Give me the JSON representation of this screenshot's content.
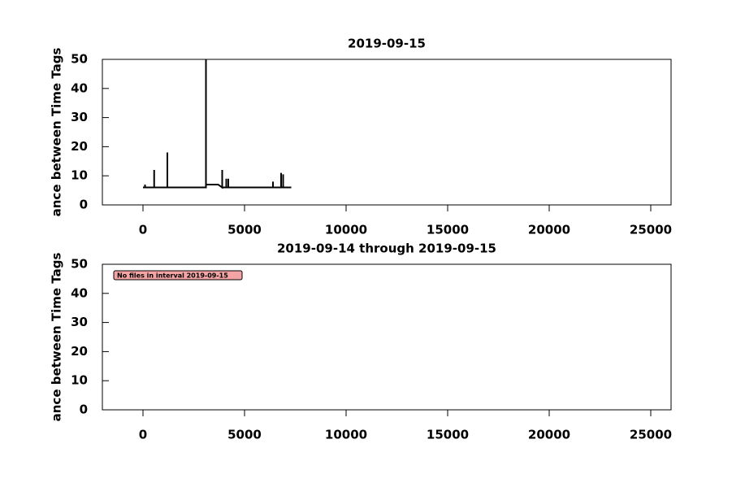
{
  "chart_data": [
    {
      "type": "line",
      "title": "2019-09-15",
      "ylabel": "ance between Time Tags",
      "xlim": [
        -2000,
        26000
      ],
      "xticks": [
        0,
        5000,
        10000,
        15000,
        20000,
        25000
      ],
      "ylim": [
        0,
        50
      ],
      "yticks": [
        0,
        10,
        20,
        30,
        40,
        50
      ],
      "series": [
        {
          "color": "#000000",
          "x": [
            0,
            100,
            100,
            100,
            550,
            550,
            550,
            1200,
            1200,
            1200,
            3100,
            3100,
            3100,
            3700,
            3900,
            3900,
            3900,
            4100,
            4100,
            4100,
            4200,
            4200,
            4200,
            6400,
            6400,
            6400,
            6800,
            6800,
            6800,
            6900,
            6900,
            6900,
            7300
          ],
          "values": [
            6,
            6,
            7,
            6,
            6,
            12,
            6,
            6,
            18,
            6,
            6,
            50,
            7,
            7,
            6,
            12,
            6,
            6,
            9,
            6,
            6,
            9,
            6,
            6,
            8,
            6,
            6,
            11,
            6,
            6,
            10.5,
            6,
            6
          ]
        }
      ]
    },
    {
      "type": "line",
      "title": "2019-09-14 through 2019-09-15",
      "ylabel": "ance between Time Tags",
      "annotation": "No files in interval 2019-09-15",
      "xlim": [
        -2000,
        26000
      ],
      "xticks": [
        0,
        5000,
        10000,
        15000,
        20000,
        25000
      ],
      "ylim": [
        0,
        50
      ],
      "yticks": [
        0,
        10,
        20,
        30,
        40,
        50
      ],
      "series": []
    }
  ]
}
